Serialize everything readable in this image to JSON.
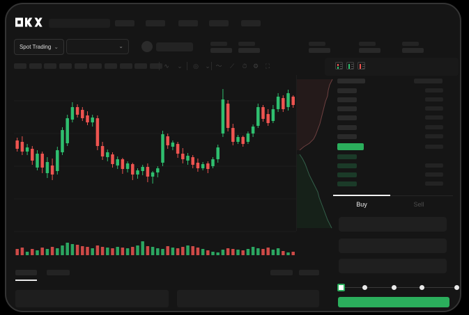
{
  "window": {
    "brand": "OKX"
  },
  "colors": {
    "up": "#2fbf6f",
    "down": "#ee5450",
    "accent_green": "#2bae5c",
    "tab_indicator": "#f2f2f2",
    "frame_bg": "#151515"
  },
  "nav": {
    "logo_label": "OKX",
    "nav_placeholder_count": 5
  },
  "market_bar": {
    "pair_selector_label": "Spot Trading",
    "chevron": "⌄",
    "stat_block_count": 5
  },
  "chart_toolbar": {
    "interval_placeholder_count": 10,
    "icons": [
      {
        "name": "indicator-line-icon",
        "glyph": "∿"
      },
      {
        "name": "chevron-down-icon",
        "glyph": "⌄"
      },
      {
        "name": "compare-icon",
        "glyph": "◎"
      },
      {
        "name": "chevron-down-icon",
        "glyph": "⌄"
      },
      {
        "name": "draw-line-icon",
        "glyph": "〜"
      },
      {
        "name": "brush-icon",
        "glyph": "⟋"
      },
      {
        "name": "snapshot-icon",
        "glyph": "⏱"
      },
      {
        "name": "settings-icon",
        "glyph": "⚙"
      },
      {
        "name": "fullscreen-icon",
        "glyph": "⛶"
      }
    ]
  },
  "order_book": {
    "view_icons": [
      {
        "name": "book-combined-view-icon",
        "marks": [
          "down",
          "up"
        ]
      },
      {
        "name": "book-bids-view-icon",
        "marks": [
          "up"
        ]
      },
      {
        "name": "book-asks-view-icon",
        "marks": [
          "down"
        ]
      }
    ],
    "header": {
      "left_placeholder": true,
      "right_placeholder": true
    },
    "asks": [
      {
        "left": true,
        "right": true
      },
      {
        "left": true,
        "right": true
      },
      {
        "left": true,
        "right": true
      },
      {
        "left": true,
        "right": true
      },
      {
        "left": true,
        "right": true
      },
      {
        "left": true,
        "right": true
      }
    ],
    "last_price_highlight": {
      "color": "up",
      "right_placeholder": true
    },
    "bids": [
      {
        "left": true,
        "right": false
      },
      {
        "left": true,
        "right": true
      },
      {
        "left": true,
        "right": true
      },
      {
        "left": true,
        "right": true
      }
    ]
  },
  "trade_form": {
    "tabs": [
      {
        "label": "Buy",
        "active": true
      },
      {
        "label": "Sell",
        "active": false
      }
    ],
    "field_count": 3,
    "slider": {
      "stops": 5,
      "active_stop": 0
    },
    "submit_label": ""
  },
  "bottom_bar": {
    "left_tab_count": 2,
    "active_tab": 0,
    "right_placeholder_count": 2,
    "panel_count": 2
  },
  "chart_data": {
    "type": "candlestick",
    "title": "",
    "xlabel": "",
    "ylabel": "",
    "note": "Skeleton trading chart: no numeric axis labels are visible. Candle values are [high,open,close,low] as pixels from chart top (smaller = higher price), chart height 225px. Volume values are bar heights in px. Depth curves are [x,y] px inside a 53x224 strip.",
    "candles": [
      [
        88,
        92,
        104,
        108
      ],
      [
        86,
        94,
        108,
        113
      ],
      [
        97,
        108,
        102,
        113
      ],
      [
        100,
        104,
        121,
        127
      ],
      [
        106,
        131,
        111,
        135
      ],
      [
        108,
        111,
        131,
        139
      ],
      [
        116,
        139,
        123,
        146
      ],
      [
        118,
        128,
        141,
        149
      ],
      [
        101,
        136,
        106,
        141
      ],
      [
        73,
        109,
        77,
        113
      ],
      [
        55,
        96,
        60,
        100
      ],
      [
        37,
        62,
        44,
        66
      ],
      [
        40,
        44,
        55,
        59
      ],
      [
        44,
        48,
        60,
        64
      ],
      [
        50,
        56,
        66,
        70
      ],
      [
        55,
        66,
        59,
        72
      ],
      [
        56,
        60,
        100,
        106
      ],
      [
        94,
        100,
        115,
        120
      ],
      [
        105,
        116,
        109,
        122
      ],
      [
        109,
        112,
        126,
        131
      ],
      [
        115,
        128,
        119,
        133
      ],
      [
        117,
        119,
        133,
        140
      ],
      [
        122,
        133,
        125,
        138
      ],
      [
        124,
        126,
        141,
        149
      ],
      [
        132,
        141,
        135,
        147
      ],
      [
        127,
        136,
        130,
        142
      ],
      [
        125,
        130,
        144,
        152
      ],
      [
        136,
        144,
        138,
        154
      ],
      [
        129,
        138,
        132,
        145
      ],
      [
        78,
        124,
        83,
        129
      ],
      [
        82,
        86,
        99,
        104
      ],
      [
        92,
        101,
        95,
        106
      ],
      [
        94,
        97,
        111,
        117
      ],
      [
        103,
        111,
        119,
        125
      ],
      [
        110,
        121,
        114,
        127
      ],
      [
        113,
        116,
        127,
        132
      ],
      [
        118,
        124,
        132,
        137
      ],
      [
        123,
        132,
        126,
        135
      ],
      [
        122,
        125,
        133,
        139
      ],
      [
        116,
        129,
        119,
        132
      ],
      [
        98,
        119,
        102,
        124
      ],
      [
        18,
        82,
        33,
        87
      ],
      [
        34,
        39,
        74,
        79
      ],
      [
        68,
        74,
        94,
        99
      ],
      [
        84,
        94,
        87,
        97
      ],
      [
        85,
        87,
        97,
        101
      ],
      [
        79,
        94,
        82,
        97
      ],
      [
        69,
        82,
        72,
        87
      ],
      [
        39,
        71,
        44,
        74
      ],
      [
        41,
        44,
        61,
        65
      ],
      [
        47,
        54,
        67,
        71
      ],
      [
        41,
        64,
        47,
        67
      ],
      [
        24,
        47,
        29,
        51
      ],
      [
        27,
        31,
        47,
        51
      ],
      [
        19,
        44,
        24,
        49
      ],
      [
        27,
        29,
        41,
        45
      ]
    ],
    "volume": [
      9,
      11,
      5,
      9,
      7,
      11,
      9,
      12,
      10,
      14,
      18,
      16,
      15,
      13,
      12,
      10,
      14,
      12,
      11,
      10,
      12,
      11,
      10,
      12,
      14,
      20,
      13,
      12,
      10,
      9,
      13,
      11,
      10,
      12,
      14,
      13,
      11,
      9,
      7,
      5,
      4,
      8,
      10,
      9,
      8,
      7,
      9,
      12,
      10,
      9,
      11,
      8,
      10,
      6,
      4,
      5
    ],
    "depth": {
      "asks": [
        [
          51,
          6
        ],
        [
          47,
          14
        ],
        [
          45,
          22
        ],
        [
          44,
          30
        ],
        [
          41,
          38
        ],
        [
          39,
          46
        ],
        [
          37,
          54
        ],
        [
          35,
          62
        ],
        [
          33,
          70
        ],
        [
          30,
          78
        ],
        [
          27,
          86
        ],
        [
          24,
          92
        ],
        [
          18,
          98
        ],
        [
          10,
          103
        ],
        [
          4,
          108
        ]
      ],
      "bids": [
        [
          4,
          114
        ],
        [
          8,
          120
        ],
        [
          12,
          128
        ],
        [
          15,
          136
        ],
        [
          18,
          144
        ],
        [
          22,
          152
        ],
        [
          26,
          160
        ],
        [
          30,
          168
        ],
        [
          32,
          176
        ],
        [
          35,
          184
        ],
        [
          38,
          192
        ],
        [
          41,
          200
        ],
        [
          44,
          208
        ],
        [
          47,
          214
        ],
        [
          50,
          220
        ]
      ]
    },
    "grid": true,
    "legend": false
  }
}
